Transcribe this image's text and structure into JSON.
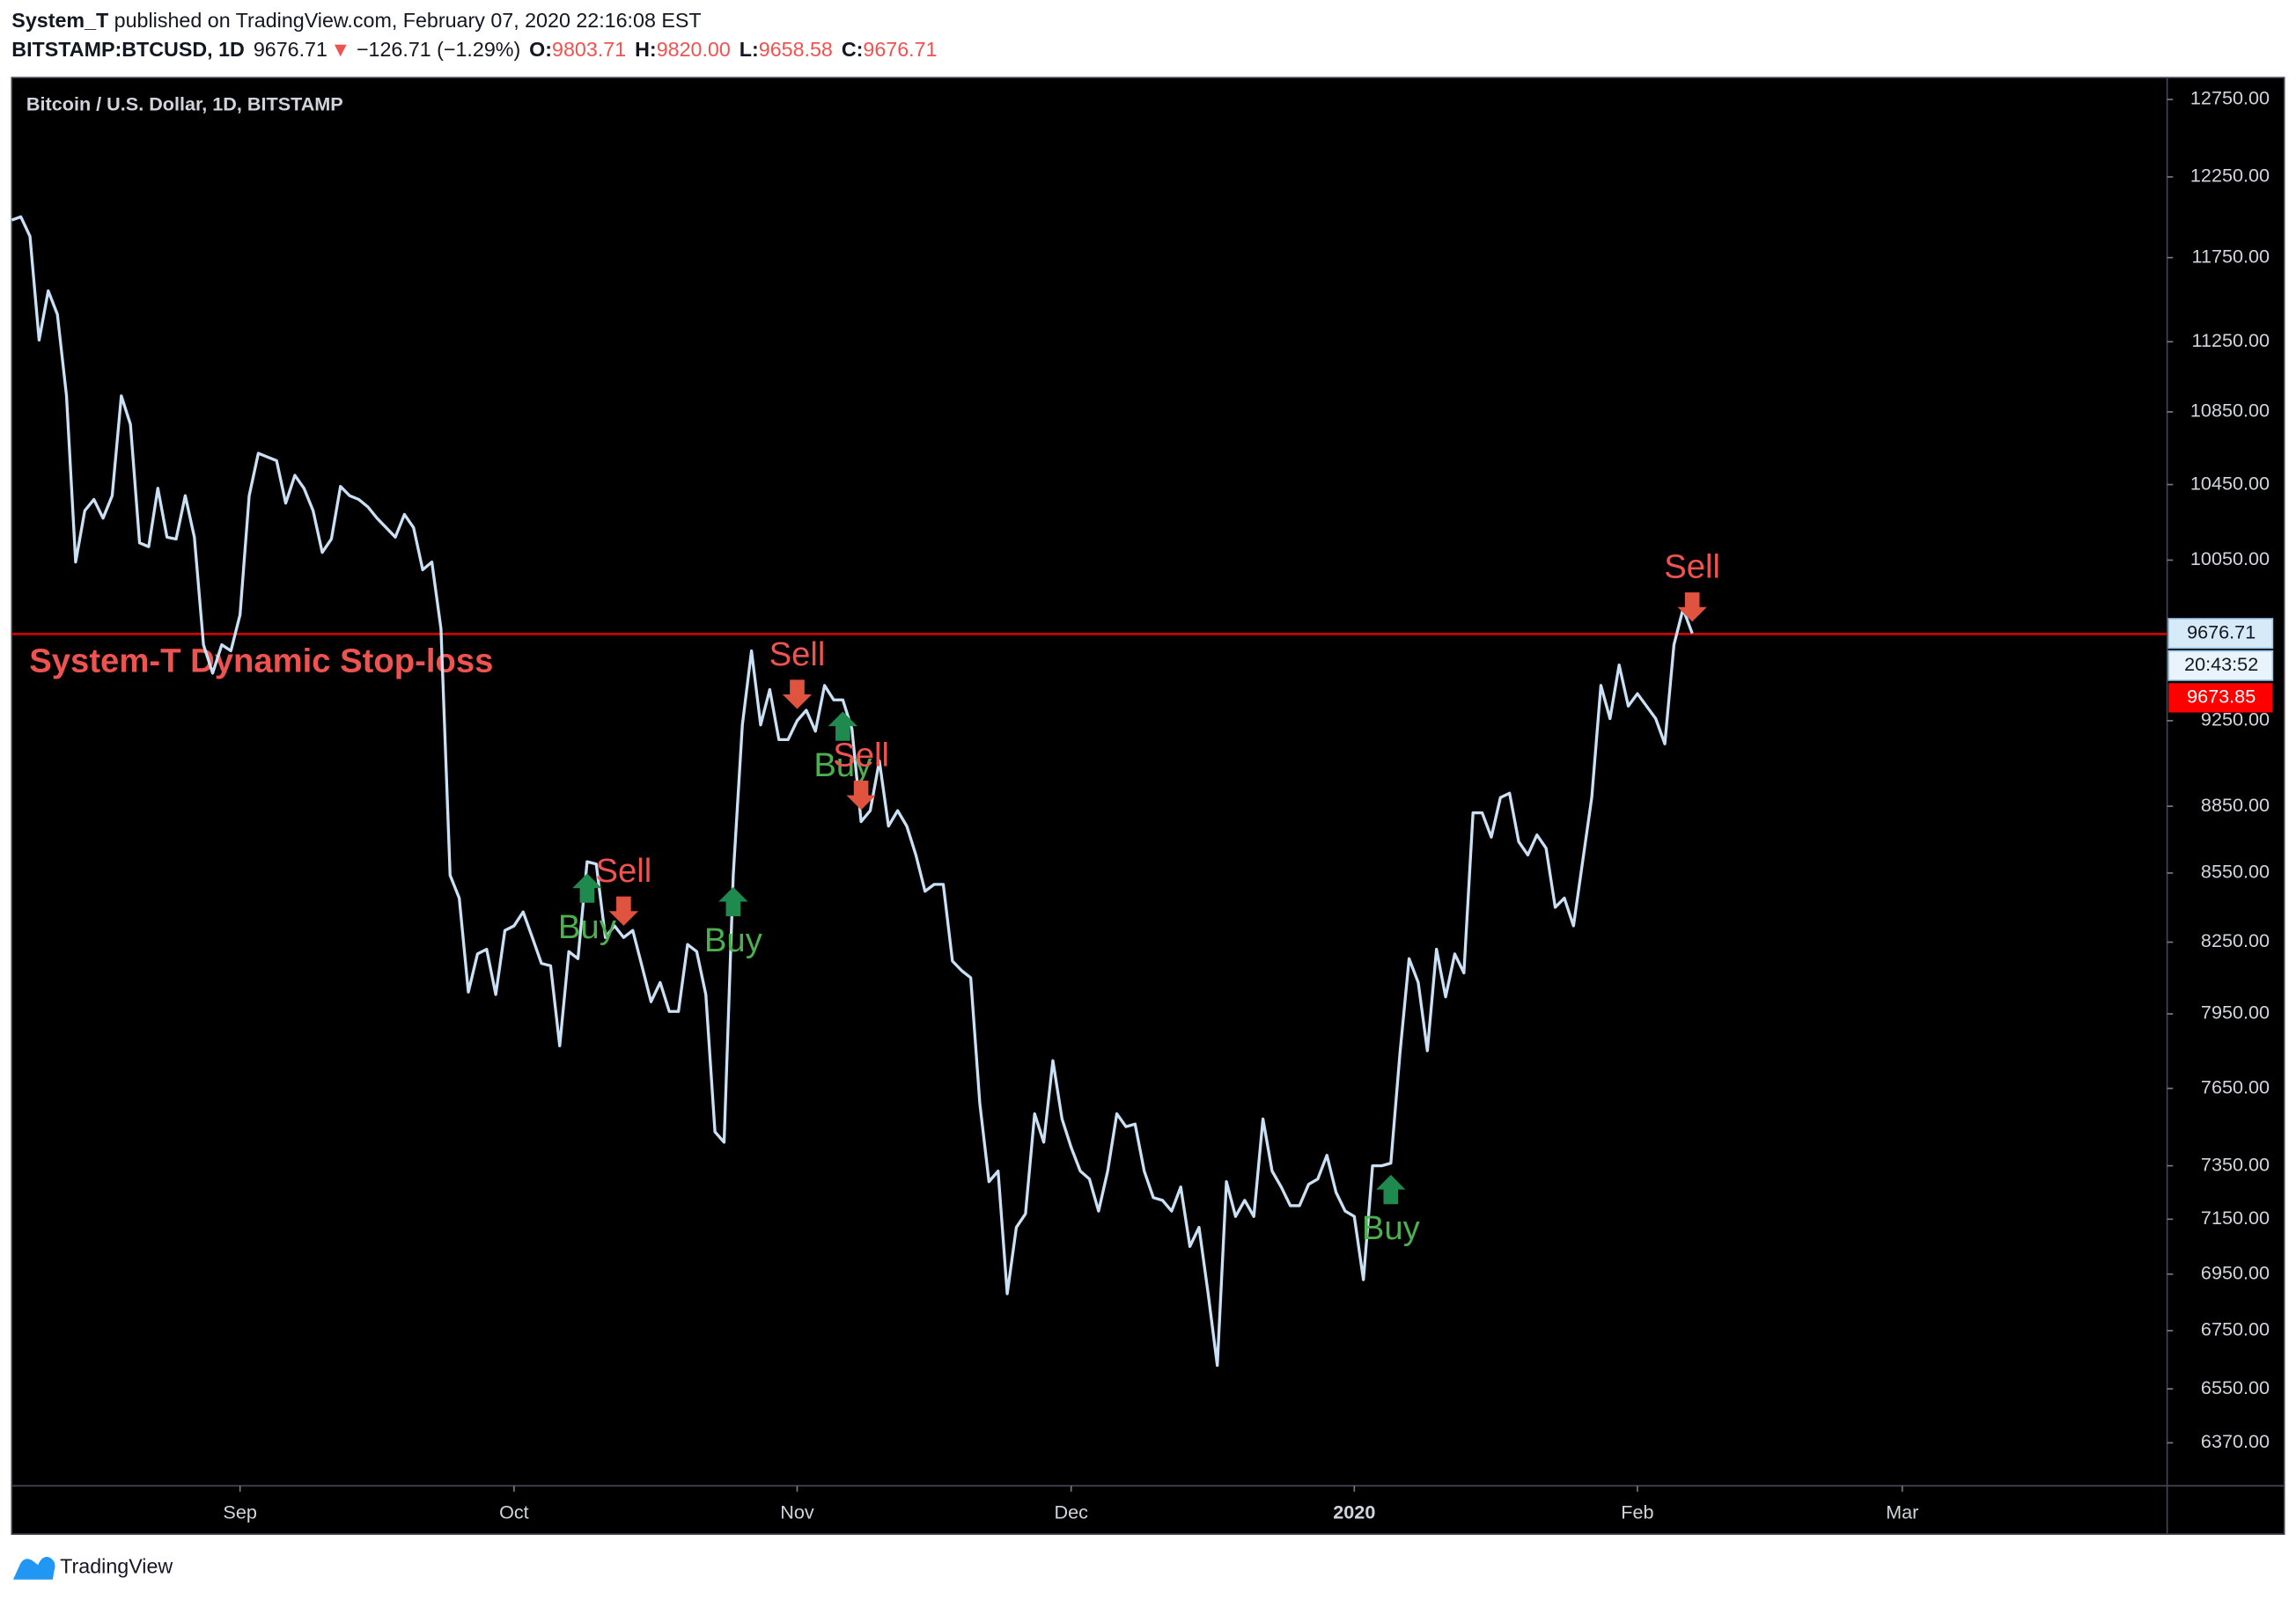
{
  "header": {
    "publisher": "System_T",
    "published": " published on TradingView.com, February 07, 2020 22:16:08 EST",
    "symbol": "BITSTAMP:BTCUSD, 1D",
    "price": "9676.71",
    "arrow": "▼",
    "change": "−126.71 (−1.29%)",
    "ohlc": [
      {
        "key": "O:",
        "value": "9803.71"
      },
      {
        "key": "H:",
        "value": "9820.00"
      },
      {
        "key": "L:",
        "value": "9658.58"
      },
      {
        "key": "C:",
        "value": "9676.71"
      }
    ]
  },
  "chart_data": {
    "type": "line",
    "title": "Bitcoin / U.S. Dollar, 1D, BITSTAMP",
    "color": "#c9e0f5",
    "log_scale": true,
    "grid": false,
    "categories": [
      null,
      null,
      null,
      null,
      null,
      null,
      null,
      null,
      null,
      null,
      null,
      null,
      null,
      null,
      null,
      null,
      null,
      null,
      null,
      null,
      null,
      null,
      null,
      null,
      null,
      "Sep",
      null,
      null,
      null,
      null,
      null,
      null,
      null,
      null,
      null,
      null,
      null,
      null,
      null,
      null,
      null,
      null,
      null,
      null,
      null,
      null,
      null,
      null,
      null,
      null,
      null,
      null,
      null,
      null,
      null,
      "Oct",
      null,
      null,
      null,
      null,
      null,
      null,
      null,
      null,
      null,
      null,
      null,
      null,
      null,
      null,
      null,
      null,
      null,
      null,
      null,
      null,
      null,
      null,
      null,
      null,
      null,
      null,
      null,
      null,
      null,
      null,
      "Nov",
      null,
      null,
      null,
      null,
      null,
      null,
      null,
      null,
      null,
      null,
      null,
      null,
      null,
      null,
      null,
      null,
      null,
      null,
      null,
      null,
      null,
      null,
      null,
      null,
      null,
      null,
      null,
      null,
      null,
      "Dec",
      null,
      null,
      null,
      null,
      null,
      null,
      null,
      null,
      null,
      null,
      null,
      null,
      null,
      null,
      null,
      null,
      null,
      null,
      null,
      null,
      null,
      null,
      null,
      null,
      null,
      null,
      null,
      null,
      null,
      null,
      "2020",
      null,
      null,
      null,
      null,
      null,
      null,
      null,
      null,
      null,
      null,
      null,
      null,
      null,
      null,
      null,
      null,
      null,
      null,
      null,
      null,
      null,
      null,
      null,
      null,
      null,
      null,
      null,
      null,
      null,
      null,
      "Feb",
      null,
      null,
      null,
      null,
      null,
      null,
      null,
      null,
      null,
      null,
      null,
      null,
      null,
      null,
      null,
      null,
      null,
      null,
      null,
      null,
      null,
      null,
      null,
      null,
      null,
      null,
      null,
      null,
      "Mar",
      null,
      null,
      null,
      null,
      null,
      null,
      null,
      null,
      null,
      null,
      null,
      null,
      null,
      null,
      null,
      null,
      null,
      null,
      null,
      null,
      null,
      null,
      null,
      null,
      null,
      null,
      null,
      null
    ],
    "values": [
      11980,
      12000,
      11880,
      11260,
      11550,
      11410,
      10940,
      10040,
      10310,
      10370,
      10270,
      10390,
      10940,
      10780,
      10140,
      10120,
      10430,
      10170,
      10160,
      10390,
      10170,
      9620,
      9480,
      9620,
      9590,
      9770,
      10390,
      10620,
      10600,
      10580,
      10350,
      10500,
      10430,
      10310,
      10090,
      10160,
      10440,
      10390,
      10370,
      10330,
      10270,
      10220,
      10170,
      10290,
      10220,
      10000,
      10040,
      9700,
      8540,
      8440,
      8040,
      8200,
      8220,
      8030,
      8300,
      8320,
      8380,
      8270,
      8160,
      8150,
      7820,
      8210,
      8180,
      8600,
      8590,
      8270,
      8320,
      8270,
      8300,
      8150,
      8000,
      8080,
      7960,
      7960,
      8240,
      8210,
      8030,
      7480,
      7440,
      8540,
      9230,
      9590,
      9230,
      9400,
      9160,
      9160,
      9250,
      9300,
      9200,
      9420,
      9350,
      9350,
      9210,
      8780,
      8830,
      9060,
      8760,
      8830,
      8760,
      8630,
      8470,
      8500,
      8500,
      8170,
      8130,
      8100,
      7590,
      7290,
      7330,
      6880,
      7120,
      7170,
      7550,
      7440,
      7760,
      7530,
      7420,
      7330,
      7300,
      7180,
      7330,
      7550,
      7500,
      7510,
      7330,
      7230,
      7220,
      7180,
      7270,
      7050,
      7120,
      6880,
      6630,
      7290,
      7160,
      7220,
      7160,
      7530,
      7330,
      7270,
      7200,
      7200,
      7280,
      7300,
      7390,
      7250,
      7180,
      7160,
      6930,
      7350,
      7350,
      7360,
      7790,
      8180,
      8080,
      7800,
      8220,
      8020,
      8200,
      8120,
      8820,
      8820,
      8710,
      8890,
      8910,
      8690,
      8630,
      8720,
      8660,
      8400,
      8440,
      8320,
      8600,
      8890,
      9420,
      9260,
      9520,
      9320,
      9380,
      9320,
      9260,
      9140,
      9620,
      9800,
      9676.71,
      null,
      null,
      null,
      null,
      null,
      null,
      null,
      null,
      null,
      null,
      null,
      null,
      null,
      null,
      null,
      null,
      null,
      null,
      null,
      null,
      null,
      null,
      null,
      null,
      null,
      null,
      null,
      null,
      null,
      null,
      null,
      null,
      null,
      null,
      null,
      null,
      null,
      null,
      null,
      null,
      null,
      null,
      null,
      null,
      null,
      null,
      null,
      null,
      null,
      null,
      null
    ],
    "ylim": [
      6230,
      12895
    ],
    "yticks": [
      {
        "value": 12750,
        "label": "12750.00"
      },
      {
        "value": 12250,
        "label": "12250.00"
      },
      {
        "value": 11750,
        "label": "11750.00"
      },
      {
        "value": 11250,
        "label": "11250.00"
      },
      {
        "value": 10850,
        "label": "10850.00"
      },
      {
        "value": 10450,
        "label": "10450.00"
      },
      {
        "value": 10050,
        "label": "10050.00"
      },
      {
        "value": 9250,
        "label": "9250.00"
      },
      {
        "value": 8850,
        "label": "8850.00"
      },
      {
        "value": 8550,
        "label": "8550.00"
      },
      {
        "value": 8250,
        "label": "8250.00"
      },
      {
        "value": 7950,
        "label": "7950.00"
      },
      {
        "value": 7650,
        "label": "7650.00"
      },
      {
        "value": 7350,
        "label": "7350.00"
      },
      {
        "value": 7150,
        "label": "7150.00"
      },
      {
        "value": 6950,
        "label": "6950.00"
      },
      {
        "value": 6750,
        "label": "6750.00"
      },
      {
        "value": 6550,
        "label": "6550.00"
      },
      {
        "value": 6370,
        "label": "6370.00"
      }
    ],
    "last_price": 9676.71,
    "countdown": "20:43:52",
    "stop_loss_value": 9673.85,
    "stop_loss_label": "System-T Dynamic Stop-loss",
    "stop_loss_color": "#e00000",
    "signals": [
      {
        "label": "Buy",
        "index": 63,
        "direction": "up"
      },
      {
        "label": "Sell",
        "index": 67,
        "direction": "down"
      },
      {
        "label": "Buy",
        "index": 79,
        "direction": "up"
      },
      {
        "label": "Sell",
        "index": 86,
        "direction": "down"
      },
      {
        "label": "Buy",
        "index": 91,
        "direction": "up"
      },
      {
        "label": "Sell",
        "index": 93,
        "direction": "down"
      },
      {
        "label": "Buy",
        "index": 151,
        "direction": "up"
      },
      {
        "label": "Sell",
        "index": 184,
        "direction": "down"
      }
    ],
    "up_color": "#1f8a4e",
    "up_label_color": "#4caf50",
    "down_color": "#e0533f",
    "down_label_color": "#ef5350"
  },
  "footer": {
    "brand": "TradingView"
  }
}
